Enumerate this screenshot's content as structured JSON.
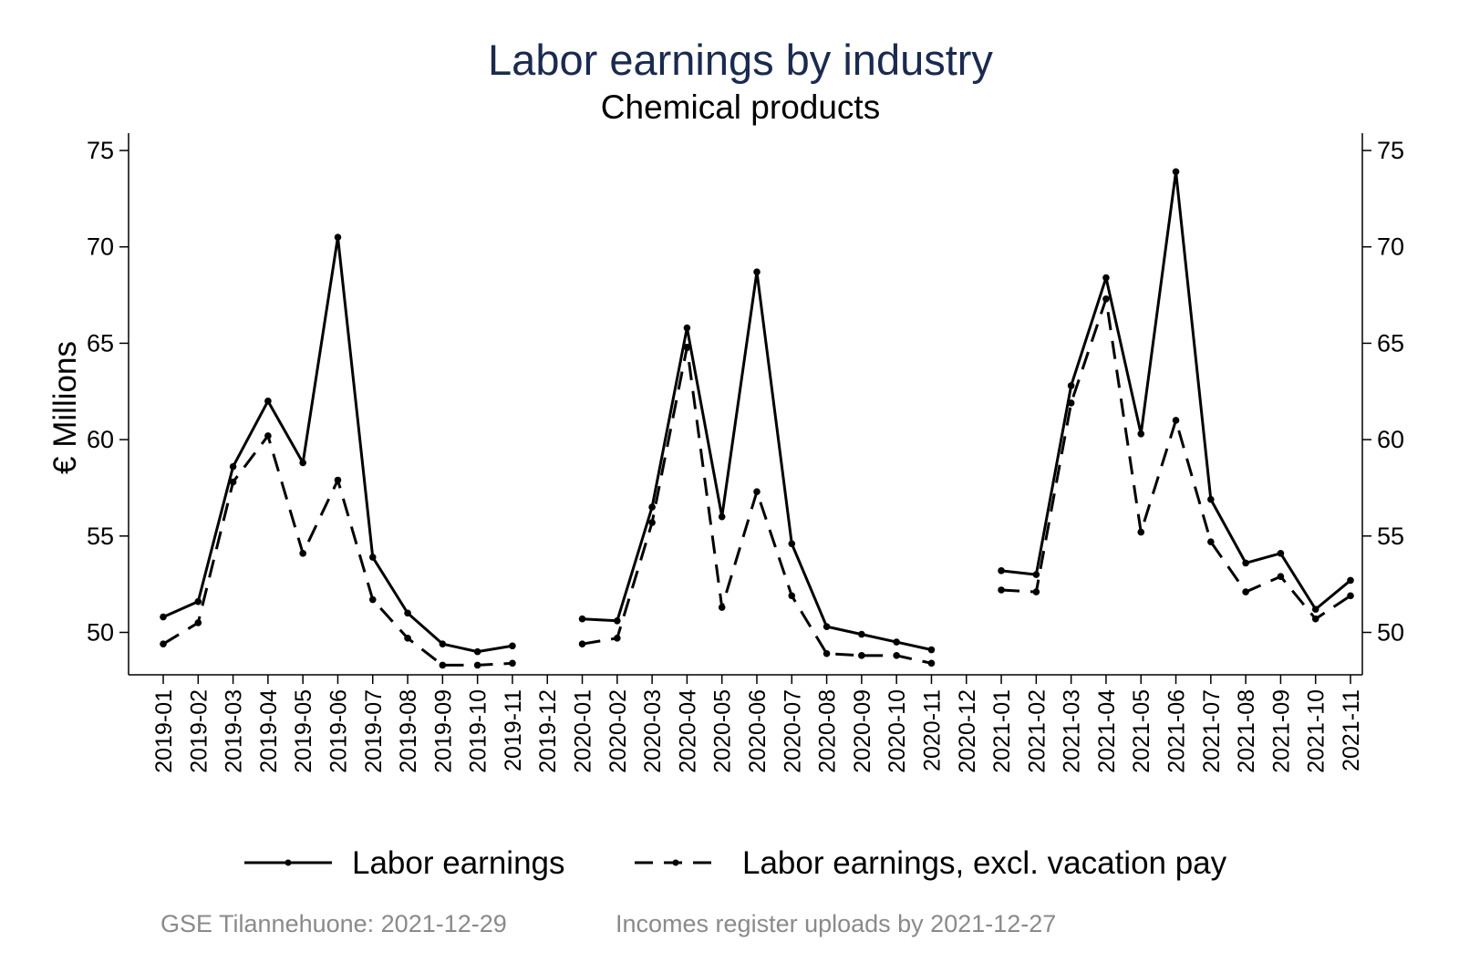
{
  "chart_data": {
    "type": "line",
    "title": "Labor earnings by industry",
    "subtitle": "Chemical products",
    "ylabel": "€ Millions",
    "ylim": [
      47.8,
      75.9
    ],
    "yticks": [
      50,
      55,
      60,
      65,
      70,
      75
    ],
    "ytick_labels": [
      "50",
      "55",
      "60",
      "65",
      "70",
      "75"
    ],
    "secondary_y_axis": true,
    "grid": false,
    "legend_position": "bottom",
    "categories": [
      "2019-01",
      "2019-02",
      "2019-03",
      "2019-04",
      "2019-05",
      "2019-06",
      "2019-07",
      "2019-08",
      "2019-09",
      "2019-10",
      "2019-11",
      "2019-12",
      "2020-01",
      "2020-02",
      "2020-03",
      "2020-04",
      "2020-05",
      "2020-06",
      "2020-07",
      "2020-08",
      "2020-09",
      "2020-10",
      "2020-11",
      "2020-12",
      "2021-01",
      "2021-02",
      "2021-03",
      "2021-04",
      "2021-05",
      "2021-06",
      "2021-07",
      "2021-08",
      "2021-09",
      "2021-10",
      "2021-11"
    ],
    "series": [
      {
        "name": "Labor earnings",
        "style": "solid",
        "color": "#000000",
        "values": [
          50.8,
          51.6,
          58.6,
          62.0,
          58.8,
          70.5,
          53.9,
          51.0,
          49.4,
          49.0,
          49.3,
          null,
          50.7,
          50.6,
          56.5,
          65.8,
          56.0,
          68.7,
          54.6,
          50.3,
          49.9,
          49.5,
          49.1,
          null,
          53.2,
          53.0,
          62.8,
          68.4,
          60.3,
          73.9,
          56.9,
          53.6,
          54.1,
          51.2,
          52.7
        ]
      },
      {
        "name": "Labor earnings, excl. vacation pay",
        "style": "dashed",
        "color": "#000000",
        "values": [
          49.4,
          50.5,
          57.8,
          60.2,
          54.1,
          57.9,
          51.7,
          49.7,
          48.3,
          48.3,
          48.4,
          null,
          49.4,
          49.7,
          55.7,
          64.8,
          51.3,
          57.3,
          51.9,
          48.9,
          48.8,
          48.8,
          48.4,
          null,
          52.2,
          52.1,
          61.9,
          67.3,
          55.2,
          61.0,
          54.7,
          52.1,
          52.9,
          50.7,
          51.9
        ]
      }
    ]
  },
  "footer": {
    "source_note": "GSE Tilannehuone: 2021-12-29",
    "upload_note": "Incomes register uploads by 2021-12-27"
  }
}
